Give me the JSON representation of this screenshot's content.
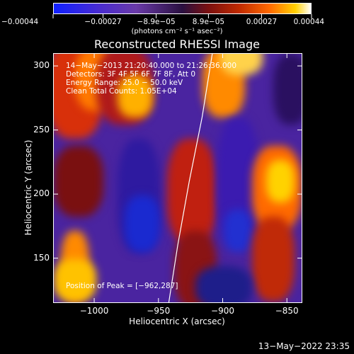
{
  "colorbar": {
    "tick_labels": [
      "−0.00044",
      "−0.00027",
      "−8.9e−05",
      "8.9e−05",
      "0.00027",
      "0.00044"
    ],
    "ticks": [
      -0.00044,
      -0.00027,
      -8.9e-05,
      8.9e-05,
      0.00027,
      0.00044
    ],
    "range": [
      -0.00044,
      0.00044
    ],
    "unit_text": "(photons cm⁻² s⁻¹ asec⁻²)"
  },
  "chart_data": {
    "type": "heatmap",
    "title": "Reconstructed RHESSI Image",
    "xlabel": "Heliocentric X (arcsec)",
    "ylabel": "Heliocentric Y (arcsec)",
    "xlim": [
      -1032,
      -838
    ],
    "ylim": [
      115,
      310
    ],
    "x_ticks": [
      -1000,
      -950,
      -900,
      -850
    ],
    "x_tick_labels": [
      "−1000",
      "−950",
      "−900",
      "−850"
    ],
    "y_ticks": [
      150,
      200,
      250,
      300
    ],
    "y_tick_labels": [
      "150",
      "200",
      "250",
      "300"
    ],
    "limb_curve": [
      [
        -942,
        115
      ],
      [
        -935,
        160
      ],
      [
        -926,
        210
      ],
      [
        -916,
        260
      ],
      [
        -908,
        310
      ]
    ],
    "annotations": [
      "14−May−2013 21:20:40.000 to 21:26:36.000",
      "Detectors: 3F 4F 5F 6F 7F 8F, Att 0",
      "Energy Range: 25.0 − 50.0 keV",
      "Clean     Total Counts: 1.05E+04",
      "Position of Peak = [−962,287]"
    ]
  },
  "footer": {
    "timestamp": "13−May−2022 23:35"
  }
}
